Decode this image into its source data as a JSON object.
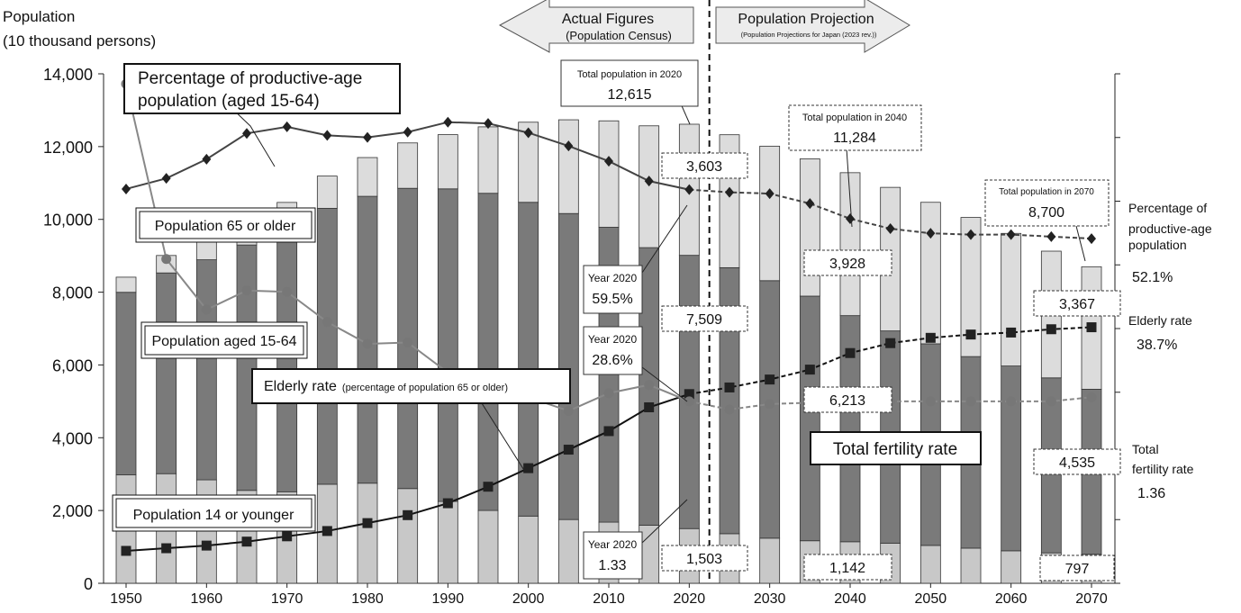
{
  "header": {
    "ylabel_line1": "Population",
    "ylabel_line2": "(10 thousand persons)",
    "actual_title": "Actual Figures",
    "actual_sub": "(Population Census)",
    "proj_title": "Population Projection",
    "proj_sub": "(Population Projections for Japan (2023 rev.))"
  },
  "colors": {
    "young": "#c8c8c8",
    "working": "#7a7a7a",
    "elderly": "#dcdcdc",
    "bar_edge": "#333333",
    "prod_line": "#444444",
    "elderly_line": "#111111",
    "fertility_line": "#888888"
  },
  "chart_data": {
    "type": "bar",
    "stacked": true,
    "years": [
      1950,
      1955,
      1960,
      1965,
      1970,
      1975,
      1980,
      1985,
      1990,
      1995,
      2000,
      2005,
      2010,
      2015,
      2020,
      2025,
      2030,
      2035,
      2040,
      2045,
      2050,
      2055,
      2060,
      2065,
      2070
    ],
    "x_ticks": [
      "1950",
      "1960",
      "1970",
      "1980",
      "1990",
      "2000",
      "2010",
      "2020",
      "2030",
      "2040",
      "2050",
      "2060",
      "2070"
    ],
    "y_ticks": [
      "0",
      "2,000",
      "4,000",
      "6,000",
      "8,000",
      "10,000",
      "12,000",
      "14,000"
    ],
    "ylim": [
      0,
      14000
    ],
    "projection_start_year": 2020,
    "series": [
      {
        "name": "Population 14 or younger",
        "values": [
          2979,
          3012,
          2843,
          2553,
          2515,
          2722,
          2751,
          2603,
          2249,
          2001,
          1847,
          1752,
          1680,
          1595,
          1503,
          1363,
          1240,
          1169,
          1142,
          1103,
          1041,
          966,
          893,
          836,
          797
        ]
      },
      {
        "name": "Population aged 15-64",
        "values": [
          5017,
          5517,
          6047,
          6744,
          7212,
          7581,
          7883,
          8251,
          8590,
          8716,
          8622,
          8409,
          8103,
          7629,
          7509,
          7310,
          7076,
          6722,
          6213,
          5832,
          5540,
          5264,
          5078,
          4809,
          4535
        ]
      },
      {
        "name": "Population 65 or older",
        "values": [
          416,
          479,
          540,
          624,
          739,
          887,
          1065,
          1247,
          1489,
          1826,
          2201,
          2576,
          2925,
          3347,
          3603,
          3653,
          3696,
          3773,
          3928,
          3945,
          3888,
          3823,
          3644,
          3482,
          3367
        ]
      }
    ],
    "lines": [
      {
        "name": "Percentage of productive-age population (aged 15-64)",
        "values": [
          59.6,
          61.2,
          64.1,
          68.0,
          69.0,
          67.7,
          67.4,
          68.2,
          69.7,
          69.5,
          68.1,
          66.1,
          63.8,
          60.8,
          59.5,
          59.1,
          58.9,
          57.4,
          55.1,
          53.6,
          52.9,
          52.7,
          52.7,
          52.4,
          52.1
        ]
      },
      {
        "name": "Elderly rate (percentage of population 65 or older)",
        "values": [
          4.9,
          5.3,
          5.7,
          6.3,
          7.1,
          7.9,
          9.1,
          10.3,
          12.1,
          14.6,
          17.4,
          20.2,
          23.0,
          26.6,
          28.6,
          29.6,
          30.8,
          32.3,
          34.8,
          36.3,
          37.1,
          37.6,
          37.9,
          38.4,
          38.7
        ]
      },
      {
        "name": "Total fertility rate",
        "values": [
          3.65,
          2.37,
          2.0,
          2.14,
          2.13,
          1.91,
          1.75,
          1.76,
          1.54,
          1.42,
          1.36,
          1.26,
          1.39,
          1.45,
          1.33,
          1.27,
          1.31,
          1.32,
          1.32,
          1.33,
          1.33,
          1.33,
          1.33,
          1.33,
          1.36
        ]
      }
    ]
  },
  "labels": {
    "prod_line1": "Percentage of productive-age",
    "prod_line2": "population (aged 15-64)",
    "pop65": "Population 65 or older",
    "pop1564": "Population aged 15-64",
    "pop14": "Population 14 or younger",
    "elderly_rate_main": "Elderly rate",
    "elderly_rate_sub": "(percentage of population  65 or older)",
    "tfr": "Total fertility rate"
  },
  "callouts": {
    "total2020_title": "Total population in 2020",
    "total2020_value": "12,615",
    "total2040_title": "Total population in 2040",
    "total2040_value": "11,284",
    "total2070_title": "Total population in 2070",
    "total2070_value": "8,700",
    "y2020_prod_year": "Year 2020",
    "y2020_prod_value": "59.5%",
    "y2020_eld_year": "Year 2020",
    "y2020_eld_value": "28.6%",
    "y2020_tfr_year": "Year 2020",
    "y2020_tfr_value": "1.33",
    "v2020_65": "3,603",
    "v2020_1564": "7,509",
    "v2020_14": "1,503",
    "v2040_65": "3,928",
    "v2040_1564": "6,213",
    "v2040_14": "1,142",
    "v2070_65": "3,367",
    "v2070_1564": "4,535",
    "v2070_14": "797"
  },
  "right_labels": {
    "prod_l1": "Percentage of",
    "prod_l2": "productive-age",
    "prod_l3": "population",
    "prod_val": "52.1%",
    "eld_l1": "Elderly rate",
    "eld_val": "38.7%",
    "tfr_l1": "Total",
    "tfr_l2": "fertility rate",
    "tfr_val": "1.36"
  }
}
